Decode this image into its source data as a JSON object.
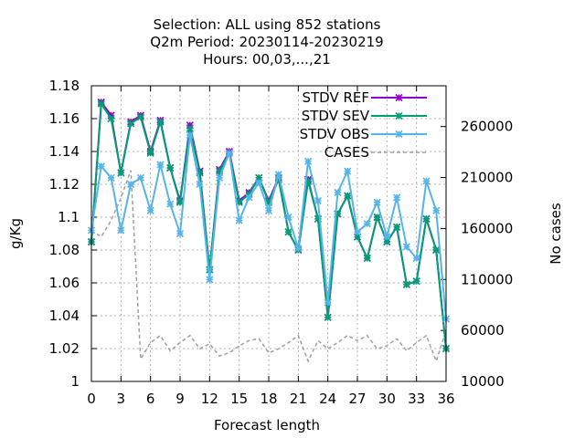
{
  "chart_data": {
    "type": "line",
    "title_lines": [
      "Selection: ALL using   852 stations",
      "Q2m   Period: 20230114-20230219",
      "Hours:  00,03,...,21"
    ],
    "xlabel": "Forecast length",
    "ylabel": "g/Kg",
    "y2label": "No cases",
    "xlim": [
      0,
      36
    ],
    "ylim": [
      1.0,
      1.18
    ],
    "y2lim": [
      10000,
      300000
    ],
    "xticks": [
      0,
      3,
      6,
      9,
      12,
      15,
      18,
      21,
      24,
      27,
      30,
      33,
      36
    ],
    "yticks": [
      1,
      1.02,
      1.04,
      1.06,
      1.08,
      1.1,
      1.12,
      1.14,
      1.16,
      1.18
    ],
    "y2ticks": [
      10000,
      60000,
      110000,
      160000,
      210000,
      260000
    ],
    "grid": true,
    "legend_position": "top-right",
    "x": [
      0,
      1,
      2,
      3,
      4,
      5,
      6,
      7,
      8,
      9,
      10,
      11,
      12,
      13,
      14,
      15,
      16,
      17,
      18,
      19,
      20,
      21,
      22,
      23,
      24,
      25,
      26,
      27,
      28,
      29,
      30,
      31,
      32,
      33,
      34,
      35,
      36
    ],
    "series": [
      {
        "name": "STDV REF",
        "axis": "y1",
        "color": "#9400d3",
        "marker": "x",
        "values": [
          1.085,
          1.17,
          1.162,
          1.127,
          1.158,
          1.162,
          1.14,
          1.159,
          1.13,
          1.11,
          1.156,
          1.128,
          1.068,
          1.129,
          1.14,
          1.11,
          1.115,
          1.124,
          1.11,
          1.124,
          1.091,
          1.08,
          1.123,
          1.099,
          1.039,
          1.102,
          1.113,
          1.088,
          1.075,
          1.1,
          1.085,
          1.094,
          1.059,
          1.061,
          1.099,
          1.08,
          1.02
        ]
      },
      {
        "name": "STDV SEV",
        "axis": "y1",
        "color": "#009e73",
        "marker": "x",
        "values": [
          1.085,
          1.169,
          1.16,
          1.127,
          1.157,
          1.161,
          1.139,
          1.158,
          1.13,
          1.109,
          1.154,
          1.127,
          1.068,
          1.128,
          1.139,
          1.109,
          1.114,
          1.124,
          1.109,
          1.123,
          1.091,
          1.08,
          1.122,
          1.099,
          1.039,
          1.102,
          1.113,
          1.088,
          1.075,
          1.1,
          1.085,
          1.094,
          1.059,
          1.061,
          1.099,
          1.08,
          1.02
        ]
      },
      {
        "name": "STDV OBS",
        "axis": "y1",
        "color": "#56b4e9",
        "marker": "x",
        "values": [
          1.092,
          1.131,
          1.124,
          1.092,
          1.12,
          1.124,
          1.104,
          1.132,
          1.108,
          1.09,
          1.15,
          1.12,
          1.062,
          1.124,
          1.139,
          1.098,
          1.112,
          1.121,
          1.104,
          1.126,
          1.1,
          1.081,
          1.134,
          1.11,
          1.048,
          1.115,
          1.128,
          1.091,
          1.096,
          1.109,
          1.088,
          1.112,
          1.082,
          1.075,
          1.122,
          1.104,
          1.038
        ]
      },
      {
        "name": "CASES",
        "axis": "y2",
        "color": "#a0a0a0",
        "dash": true,
        "values": [
          158000,
          152000,
          168000,
          190000,
          217000,
          32000,
          48000,
          55000,
          40000,
          48000,
          55000,
          42000,
          47000,
          35000,
          38000,
          45000,
          50000,
          52000,
          38000,
          42000,
          48000,
          55000,
          30000,
          50000,
          42000,
          48000,
          55000,
          50000,
          55000,
          42000,
          45000,
          52000,
          40000,
          48000,
          55000,
          30000,
          60000
        ]
      }
    ]
  }
}
